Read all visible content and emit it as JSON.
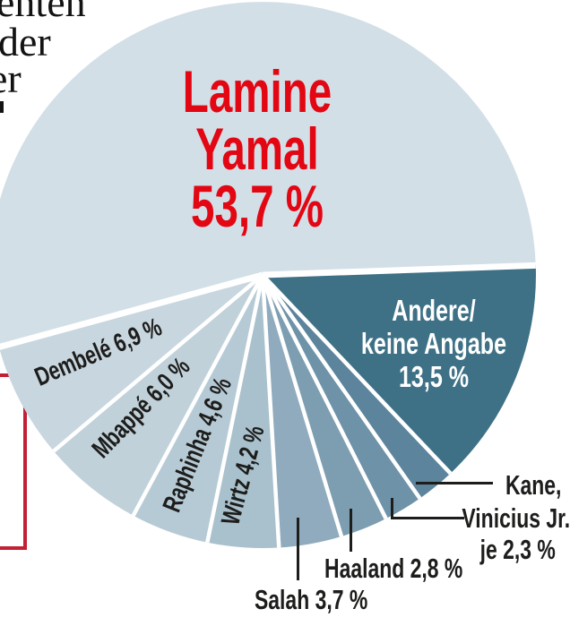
{
  "article_fragment": {
    "line1": "enten",
    "line2": "der",
    "line3": "er"
  },
  "chart_data": {
    "type": "pie",
    "title": "",
    "unit": "%",
    "start_angle_deg": 2,
    "direction": "counterclockwise",
    "slices": [
      {
        "label": "Lamine Yamal",
        "value": 53.7,
        "display": "Lamine Yamal 53,7 %",
        "color": "#d2dfe7"
      },
      {
        "label": "Dembelé",
        "value": 6.9,
        "display": "Dembelé 6,9 %",
        "color": "#c8d6df"
      },
      {
        "label": "Mbappé",
        "value": 6.0,
        "display": "Mbappé 6,0 %",
        "color": "#c0d1da"
      },
      {
        "label": "Raphinha",
        "value": 4.6,
        "display": "Raphinha 4,6 %",
        "color": "#b6cad5"
      },
      {
        "label": "Wirtz",
        "value": 4.2,
        "display": "Wirtz 4,2 %",
        "color": "#a9c0cd"
      },
      {
        "label": "Salah",
        "value": 3.7,
        "display": "Salah 3,7 %",
        "color": "#90abbe"
      },
      {
        "label": "Haaland",
        "value": 2.8,
        "display": "Haaland 2,8 %",
        "color": "#7d9db1"
      },
      {
        "label": "Vinicius Jr.",
        "value": 2.3,
        "display": "Vinicius Jr. je 2,3 %",
        "color": "#6e92a8"
      },
      {
        "label": "Kane",
        "value": 2.3,
        "display": "Kane, je 2,3 %",
        "color": "#5c849c"
      },
      {
        "label": "Andere/keine Angabe",
        "value": 13.5,
        "display": "Andere/ keine Angabe 13,5 %",
        "color": "#3e7186"
      }
    ]
  },
  "labels": {
    "yamal": {
      "line1": "Lamine",
      "line2": "Yamal",
      "line3": "53,7 %"
    },
    "andere": {
      "line1": "Andere/",
      "line2": "keine Angabe",
      "line3": "13,5 %"
    },
    "dembele": "Dembelé 6,9 %",
    "mbappe": "Mbappé 6,0 %",
    "raphinha": "Raphinha 4,6 %",
    "wirtz": "Wirtz 4,2 %",
    "salah": "Salah 3,7 %",
    "haaland": "Haaland 2,8 %",
    "kane": "Kane,",
    "vinicius": "Vinicius Jr.",
    "je": "je 2,3 %"
  },
  "colors": {
    "highlight_text": "#e30613",
    "andere_text": "#ffffff",
    "callout_line": "#1d1d1b",
    "red_frame": "#c22035",
    "separator": "#ffffff"
  }
}
